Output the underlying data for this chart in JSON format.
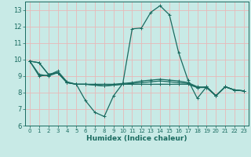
{
  "xlabel": "Humidex (Indice chaleur)",
  "bg_color": "#c8eae6",
  "grid_color": "#e8b8b8",
  "line_color": "#1a6b60",
  "xlim": [
    -0.5,
    23.5
  ],
  "ylim": [
    6,
    13.5
  ],
  "xticks": [
    0,
    1,
    2,
    3,
    4,
    5,
    6,
    7,
    8,
    9,
    10,
    11,
    12,
    13,
    14,
    15,
    16,
    17,
    18,
    19,
    20,
    21,
    22,
    23
  ],
  "yticks": [
    6,
    7,
    8,
    9,
    10,
    11,
    12,
    13
  ],
  "lines": [
    [
      9.9,
      9.8,
      9.1,
      9.2,
      8.6,
      8.5,
      8.5,
      8.45,
      8.4,
      8.45,
      8.5,
      8.5,
      8.5,
      8.5,
      8.5,
      8.5,
      8.5,
      8.5,
      8.3,
      8.35,
      7.8,
      8.35,
      8.15,
      8.1
    ],
    [
      9.9,
      9.1,
      9.0,
      9.2,
      8.6,
      8.5,
      8.5,
      8.45,
      8.4,
      8.45,
      8.5,
      8.55,
      8.6,
      8.65,
      8.7,
      8.65,
      8.6,
      8.55,
      8.3,
      8.3,
      7.8,
      8.35,
      8.15,
      8.1
    ],
    [
      9.9,
      9.0,
      9.05,
      9.3,
      8.65,
      8.5,
      8.5,
      8.5,
      8.5,
      8.5,
      8.55,
      8.6,
      8.7,
      8.75,
      8.8,
      8.75,
      8.7,
      8.6,
      8.35,
      8.3,
      7.8,
      8.35,
      8.15,
      8.1
    ],
    [
      9.9,
      9.8,
      9.1,
      9.2,
      8.6,
      8.5,
      7.5,
      6.8,
      6.55,
      7.8,
      8.55,
      11.85,
      11.9,
      12.85,
      13.25,
      12.7,
      10.4,
      8.75,
      7.65,
      8.35,
      7.8,
      8.35,
      8.15,
      8.1
    ]
  ]
}
